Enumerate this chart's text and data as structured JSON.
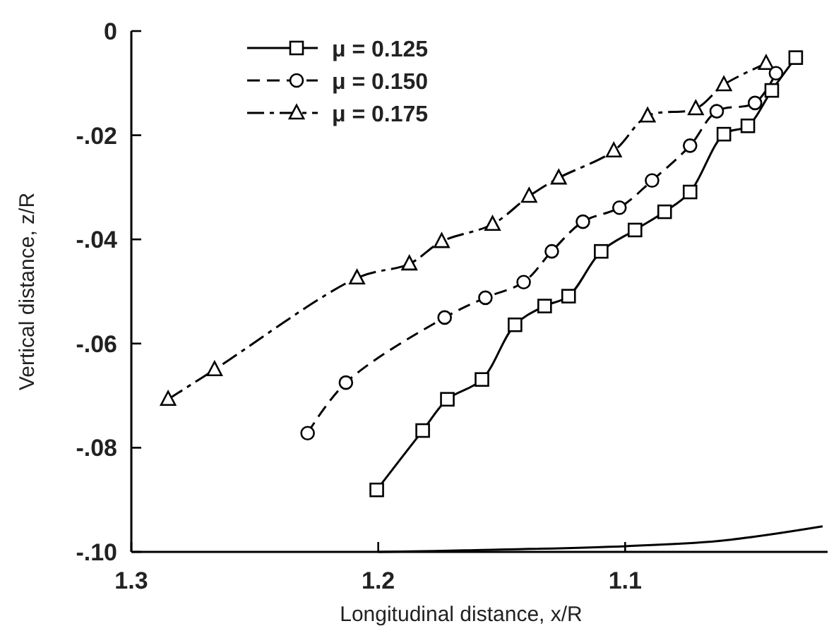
{
  "chart_data": {
    "type": "line",
    "xlabel": "Longitudinal distance, x/R",
    "ylabel": "Vertical distance, z/R",
    "xlim": [
      1.3,
      1.018
    ],
    "xticks": [
      1.3,
      1.2,
      1.1
    ],
    "ylim": [
      -0.1,
      0
    ],
    "yticks": [
      {
        "value": -0.1,
        "label": "-.10"
      },
      {
        "value": -0.08,
        "label": "-.08"
      },
      {
        "value": -0.06,
        "label": "-.06"
      },
      {
        "value": -0.04,
        "label": "-.04"
      },
      {
        "value": -0.02,
        "label": "-.02"
      },
      0
    ],
    "grid": false,
    "legend": "top",
    "series": [
      {
        "name": "μ = 0.125",
        "color": "#000000",
        "marker": "square",
        "line_style": "solid",
        "x": [
          1.2006,
          1.182,
          1.172,
          1.158,
          1.1446,
          1.1326,
          1.1229,
          1.1097,
          1.096,
          1.084,
          1.0737,
          1.06,
          1.0503,
          1.0406,
          1.0309
        ],
        "values": [
          -0.0881,
          -0.0767,
          -0.0707,
          -0.0669,
          -0.0564,
          -0.0528,
          -0.0509,
          -0.0423,
          -0.0382,
          -0.0347,
          -0.0309,
          -0.0198,
          -0.0182,
          -0.0114,
          -0.0051
        ]
      },
      {
        "name": "μ = 0.150",
        "color": "#000000",
        "marker": "circle",
        "line_style": "dashed",
        "x": [
          1.2286,
          1.2131,
          1.1731,
          1.1566,
          1.1411,
          1.1297,
          1.1171,
          1.1023,
          1.0891,
          1.0737,
          1.0629,
          1.0474,
          1.0389
        ],
        "values": [
          -0.0772,
          -0.0675,
          -0.055,
          -0.0512,
          -0.0482,
          -0.0423,
          -0.0366,
          -0.0339,
          -0.0287,
          -0.022,
          -0.0154,
          -0.0138,
          -0.0081
        ]
      },
      {
        "name": "μ = 0.175",
        "color": "#000000",
        "marker": "triangle",
        "line_style": "dashdot",
        "x": [
          1.2851,
          1.2663,
          1.2086,
          1.1874,
          1.1743,
          1.1537,
          1.1389,
          1.1269,
          1.1046,
          1.0909,
          1.0714,
          1.06,
          1.0429
        ],
        "values": [
          -0.0707,
          -0.065,
          -0.0474,
          -0.0447,
          -0.0404,
          -0.0371,
          -0.0317,
          -0.0282,
          -0.023,
          -0.0163,
          -0.0149,
          -0.0103,
          -0.0062
        ]
      },
      {
        "color": "#000000",
        "marker": "none",
        "line_style": "solid",
        "x": [
          1.2,
          1.165,
          1.1,
          1.06,
          1.02
        ],
        "values": [
          -0.1,
          -0.0997,
          -0.0989,
          -0.0978,
          -0.0951
        ]
      }
    ]
  }
}
